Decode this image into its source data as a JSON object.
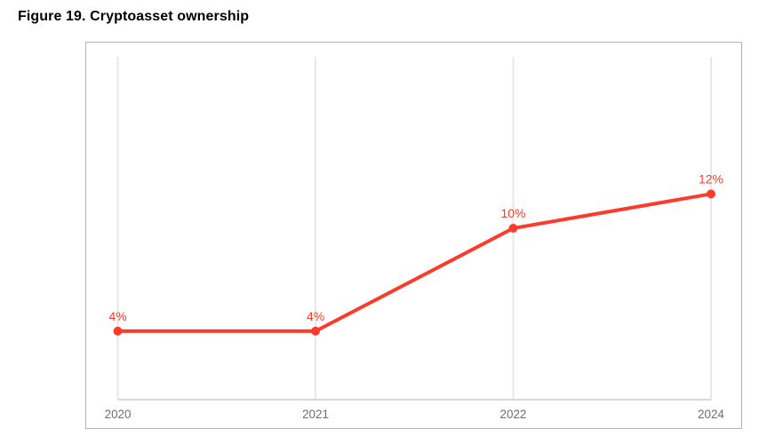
{
  "figure": {
    "title": "Figure 19. Cryptoasset ownership"
  },
  "chart_data": {
    "type": "line",
    "title": "Figure 19. Cryptoasset ownership",
    "categories": [
      "2020",
      "2021",
      "2022",
      "2024"
    ],
    "series": [
      {
        "name": "Cryptoasset ownership",
        "values": [
          4,
          4,
          10,
          12
        ],
        "point_labels": [
          "4%",
          "4%",
          "10%",
          "12%"
        ],
        "color": "#fb3b2b"
      }
    ],
    "xlabel": "",
    "ylabel": "",
    "ylim": [
      0,
      20
    ],
    "y_axis_visible": false,
    "grid": "vertical-only",
    "legend": "none",
    "colors": {
      "gridline": "#e7e7e7",
      "axis_line": "#d6d6d6",
      "tick_label": "#6e6e6e",
      "plot_border": "#b2b2b2"
    }
  }
}
